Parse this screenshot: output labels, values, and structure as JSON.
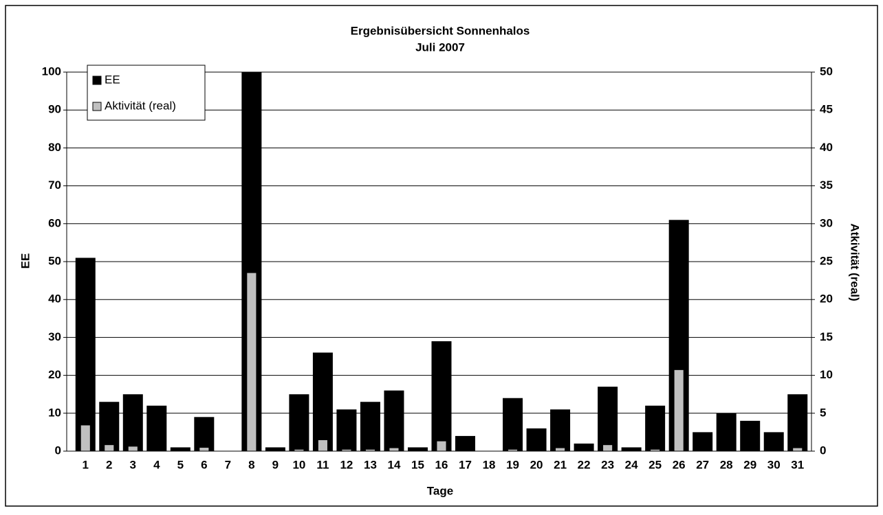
{
  "chart_data": {
    "type": "bar",
    "title": "Ergebnisübersicht Sonnenhalos",
    "subtitle": "Juli 2007",
    "x_label": "Tage",
    "y_label": "EE",
    "y2_label": "Atkivität (real)",
    "categories": [
      "1",
      "2",
      "3",
      "4",
      "5",
      "6",
      "7",
      "8",
      "9",
      "10",
      "11",
      "12",
      "13",
      "14",
      "15",
      "16",
      "17",
      "18",
      "19",
      "20",
      "21",
      "22",
      "23",
      "24",
      "25",
      "26",
      "27",
      "28",
      "29",
      "30",
      "31"
    ],
    "series": [
      {
        "name": "EE",
        "color": "#000000",
        "values": [
          51,
          13,
          15,
          12,
          1,
          9,
          0,
          100,
          1,
          15,
          26,
          11,
          13,
          16,
          1,
          29,
          4,
          0,
          14,
          6,
          11,
          2,
          17,
          1,
          12,
          61,
          5,
          10,
          8,
          5,
          15
        ]
      },
      {
        "name": "Aktivität (real)",
        "color": "#c0c0c0",
        "axis": "y2",
        "values": [
          3.4,
          0.8,
          0.6,
          0,
          0,
          0.45,
          0,
          23.5,
          0,
          0.2,
          1.45,
          0.2,
          0.2,
          0.4,
          0,
          1.3,
          0,
          0,
          0.2,
          0,
          0.4,
          0,
          0.8,
          0,
          0.2,
          10.7,
          0,
          0,
          0,
          0,
          0.4
        ]
      }
    ],
    "ylim": [
      0,
      100
    ],
    "yticks": [
      0,
      10,
      20,
      30,
      40,
      50,
      60,
      70,
      80,
      90,
      100
    ],
    "y2lim": [
      0,
      50
    ],
    "y2ticks": [
      0,
      5,
      10,
      15,
      20,
      25,
      30,
      35,
      40,
      45,
      50
    ],
    "grid": true,
    "legend": "top-left"
  }
}
